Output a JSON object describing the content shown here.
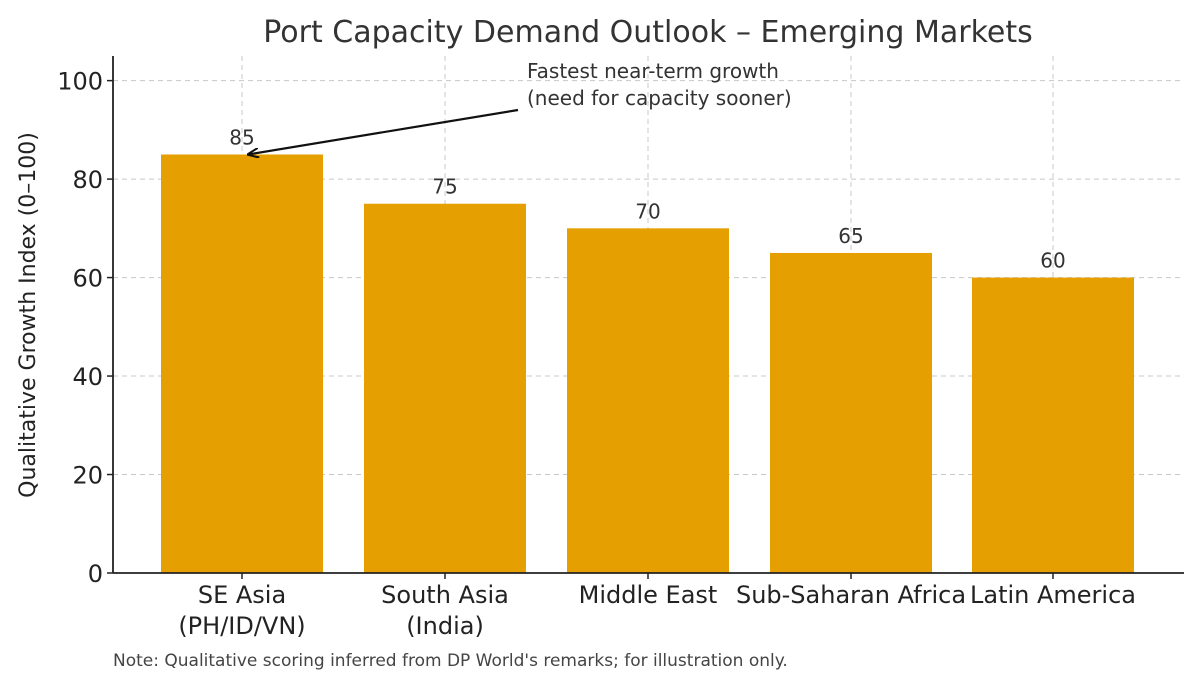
{
  "chart_data": {
    "type": "bar",
    "title": "Port Capacity Demand Outlook – Emerging Markets",
    "xlabel": "",
    "ylabel": "Qualitative Growth Index (0–100)",
    "ylim": [
      0,
      105
    ],
    "yticks": [
      0,
      20,
      40,
      60,
      80,
      100
    ],
    "grid": true,
    "bar_color": "#e59f00",
    "categories": [
      [
        "SE Asia",
        "(PH/ID/VN)"
      ],
      [
        "South Asia",
        "(India)"
      ],
      [
        "Middle East"
      ],
      [
        "Sub-Saharan Africa"
      ],
      [
        "Latin America"
      ]
    ],
    "values": [
      85,
      75,
      70,
      65,
      60
    ],
    "annotation": {
      "lines": [
        "Fastest near-term growth",
        "(need for capacity sooner)"
      ],
      "target_index": 0
    },
    "note": "Note: Qualitative scoring inferred from DP World's remarks; for illustration only."
  }
}
